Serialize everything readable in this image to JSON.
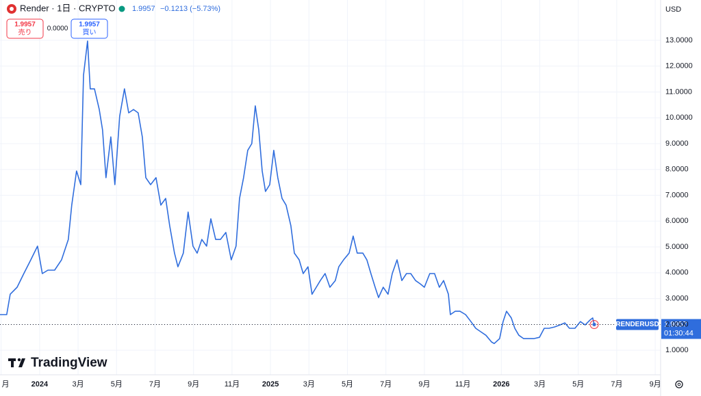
{
  "header": {
    "symbol": "Render · 1日 · CRYPTO",
    "price": 1.9957,
    "change": "−0.1213 (−5.73%)"
  },
  "trade": {
    "sell_price": 1.9957,
    "sell_label": "売り",
    "spread": "0.0000",
    "buy_price": 1.9957,
    "buy_label": "買い"
  },
  "currency": "USD",
  "price_tag": {
    "symbol": "RENDERUSD",
    "countdown": "01:30:44"
  },
  "logo": "TradingView",
  "chart_data": {
    "type": "line",
    "color": "#2f6ddd",
    "last_price": 1.9957,
    "xlim": [
      -2.06,
      32.28
    ],
    "ylim": [
      0.05,
      14.56
    ],
    "xticks": [
      {
        "value": -2,
        "label": "月"
      },
      {
        "value": 0,
        "label": "2024"
      },
      {
        "value": 2,
        "label": "3月"
      },
      {
        "value": 4,
        "label": "5月"
      },
      {
        "value": 6,
        "label": "7月"
      },
      {
        "value": 8,
        "label": "9月"
      },
      {
        "value": 10,
        "label": "11月"
      },
      {
        "value": 12,
        "label": "2025"
      },
      {
        "value": 14,
        "label": "3月"
      },
      {
        "value": 16,
        "label": "5月"
      },
      {
        "value": 18,
        "label": "7月"
      },
      {
        "value": 20,
        "label": "9月"
      },
      {
        "value": 22,
        "label": "11月"
      },
      {
        "value": 24,
        "label": "2026"
      },
      {
        "value": 26,
        "label": "3月"
      },
      {
        "value": 28,
        "label": "5月"
      },
      {
        "value": 30,
        "label": "7月"
      },
      {
        "value": 32,
        "label": "9月"
      }
    ],
    "yticks": [
      {
        "value": 1,
        "label": "1.0000"
      },
      {
        "value": 2,
        "label": "2.0000"
      },
      {
        "value": 3,
        "label": "3.0000"
      },
      {
        "value": 4,
        "label": "4.0000"
      },
      {
        "value": 5,
        "label": "5.0000"
      },
      {
        "value": 6,
        "label": "6.0000"
      },
      {
        "value": 7,
        "label": "7.0000"
      },
      {
        "value": 8,
        "label": "8.0000"
      },
      {
        "value": 9,
        "label": "9.0000"
      },
      {
        "value": 10,
        "label": "10.0000"
      },
      {
        "value": 11,
        "label": "11.0000"
      },
      {
        "value": 12,
        "label": "12.0000"
      },
      {
        "value": 13,
        "label": "13.0000"
      }
    ],
    "grid": true,
    "x": [
      -2.06,
      -1.71,
      -1.53,
      -1.17,
      -0.82,
      -0.46,
      -0.11,
      0.14,
      0.43,
      0.78,
      1.14,
      1.49,
      1.67,
      1.92,
      2.14,
      2.28,
      2.49,
      2.63,
      2.85,
      3.1,
      3.27,
      3.45,
      3.7,
      3.91,
      4.16,
      4.41,
      4.63,
      4.88,
      5.12,
      5.34,
      5.52,
      5.77,
      6.05,
      6.3,
      6.55,
      6.76,
      7.01,
      7.19,
      7.47,
      7.72,
      7.97,
      8.19,
      8.43,
      8.68,
      8.9,
      9.15,
      9.4,
      9.68,
      9.96,
      10.21,
      10.39,
      10.6,
      10.82,
      11.03,
      11.21,
      11.39,
      11.57,
      11.74,
      11.96,
      12.17,
      12.38,
      12.6,
      12.81,
      13.06,
      13.24,
      13.49,
      13.7,
      13.95,
      14.16,
      14.38,
      14.59,
      14.84,
      15.09,
      15.37,
      15.55,
      15.8,
      16.09,
      16.3,
      16.51,
      16.8,
      17.01,
      17.22,
      17.44,
      17.62,
      17.86,
      18.11,
      18.33,
      18.58,
      18.83,
      19.07,
      19.29,
      19.54,
      19.79,
      20.0,
      20.28,
      20.53,
      20.78,
      21.0,
      21.25,
      21.35,
      21.6,
      21.85,
      22.14,
      22.42,
      22.67,
      22.92,
      23.2,
      23.49,
      23.63,
      23.91,
      24.09,
      24.27,
      24.52,
      24.7,
      24.91,
      25.16,
      25.41,
      25.69,
      25.98,
      26.23,
      26.48,
      26.76,
      27.05,
      27.3,
      27.54,
      27.83,
      28.11,
      28.36,
      28.61,
      28.75,
      28.83
    ],
    "values": [
      2.38,
      2.38,
      3.17,
      3.44,
      3.97,
      4.5,
      5.03,
      3.97,
      4.1,
      4.1,
      4.5,
      5.29,
      6.62,
      7.94,
      7.41,
      11.65,
      12.97,
      11.12,
      11.12,
      10.32,
      9.53,
      7.68,
      9.26,
      7.41,
      10.06,
      11.12,
      10.19,
      10.32,
      10.19,
      9.26,
      7.68,
      7.41,
      7.68,
      6.62,
      6.88,
      5.82,
      4.76,
      4.23,
      4.76,
      6.35,
      5.03,
      4.76,
      5.29,
      5.03,
      6.09,
      5.29,
      5.29,
      5.56,
      4.5,
      5.03,
      6.88,
      7.68,
      8.74,
      9.0,
      10.46,
      9.53,
      7.94,
      7.15,
      7.41,
      8.74,
      7.68,
      6.88,
      6.62,
      5.82,
      4.76,
      4.5,
      3.97,
      4.23,
      3.17,
      3.44,
      3.7,
      3.97,
      3.44,
      3.7,
      4.23,
      4.5,
      4.76,
      5.42,
      4.76,
      4.76,
      4.5,
      3.97,
      3.44,
      3.04,
      3.44,
      3.17,
      3.97,
      4.5,
      3.7,
      3.97,
      3.97,
      3.7,
      3.57,
      3.44,
      3.97,
      3.97,
      3.44,
      3.7,
      3.17,
      2.38,
      2.51,
      2.51,
      2.38,
      2.11,
      1.85,
      1.72,
      1.58,
      1.32,
      1.26,
      1.45,
      2.11,
      2.51,
      2.25,
      1.85,
      1.58,
      1.45,
      1.45,
      1.45,
      1.5,
      1.85,
      1.85,
      1.9,
      1.98,
      2.06,
      1.85,
      1.85,
      2.11,
      1.98,
      2.17,
      2.25,
      1.9957
    ]
  }
}
